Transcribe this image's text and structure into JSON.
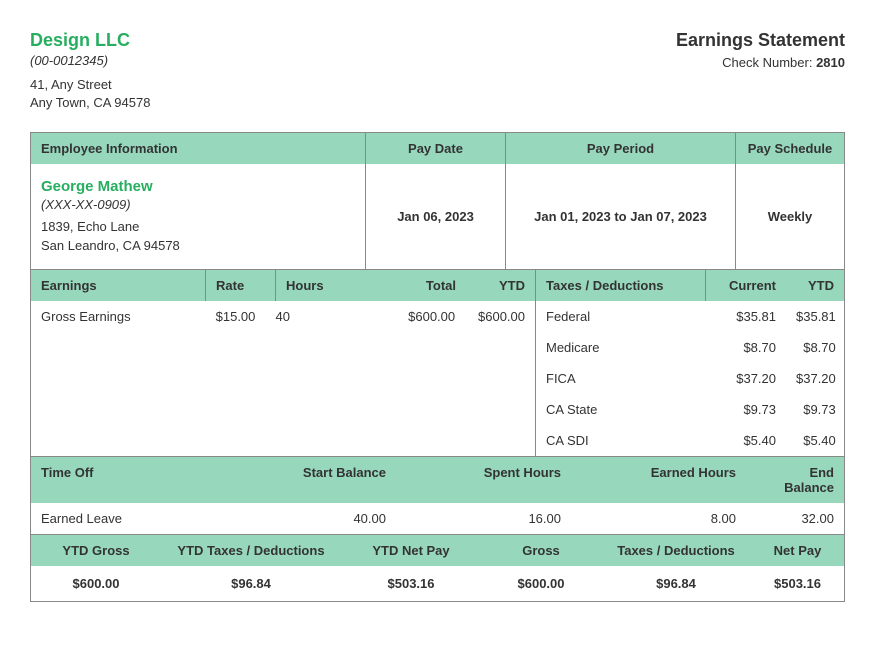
{
  "colors": {
    "accent": "#27ae60",
    "header_bg": "#97d8bd",
    "border": "#888888",
    "text": "#333333"
  },
  "company": {
    "name": "Design LLC",
    "id": "(00-0012345)",
    "addr1": "41, Any Street",
    "addr2": "Any Town, CA 94578"
  },
  "statement": {
    "title": "Earnings Statement",
    "check_label": "Check Number:",
    "check_number": "2810"
  },
  "info_headers": {
    "employee": "Employee Information",
    "pay_date": "Pay Date",
    "pay_period": "Pay Period",
    "pay_schedule": "Pay Schedule"
  },
  "employee": {
    "name": "George Mathew",
    "ssn": "(XXX-XX-0909)",
    "addr1": "1839, Echo Lane",
    "addr2": "San Leandro, CA 94578"
  },
  "pay_date": "Jan 06, 2023",
  "pay_period": "Jan 01, 2023 to Jan 07, 2023",
  "pay_schedule": "Weekly",
  "earn_headers": {
    "earnings": "Earnings",
    "rate": "Rate",
    "hours": "Hours",
    "total": "Total",
    "ytd": "YTD",
    "taxes": "Taxes / Deductions",
    "current": "Current",
    "tytd": "YTD"
  },
  "earnings": {
    "label": "Gross Earnings",
    "rate": "$15.00",
    "hours": "40",
    "total": "$600.00",
    "ytd": "$600.00"
  },
  "deductions": [
    {
      "label": "Federal",
      "current": "$35.81",
      "ytd": "$35.81"
    },
    {
      "label": "Medicare",
      "current": "$8.70",
      "ytd": "$8.70"
    },
    {
      "label": "FICA",
      "current": "$37.20",
      "ytd": "$37.20"
    },
    {
      "label": "CA State",
      "current": "$9.73",
      "ytd": "$9.73"
    },
    {
      "label": "CA SDI",
      "current": "$5.40",
      "ytd": "$5.40"
    }
  ],
  "timeoff_headers": {
    "label": "Time Off",
    "start": "Start Balance",
    "spent": "Spent Hours",
    "earned": "Earned Hours",
    "end": "End Balance"
  },
  "timeoff": {
    "label": "Earned Leave",
    "start": "40.00",
    "spent": "16.00",
    "earned": "8.00",
    "end": "32.00"
  },
  "summary_headers": {
    "ytd_gross": "YTD Gross",
    "ytd_tax": "YTD Taxes / Deductions",
    "ytd_net": "YTD Net Pay",
    "gross": "Gross",
    "tax": "Taxes / Deductions",
    "net": "Net Pay"
  },
  "summary": {
    "ytd_gross": "$600.00",
    "ytd_tax": "$96.84",
    "ytd_net": "$503.16",
    "gross": "$600.00",
    "tax": "$96.84",
    "net": "$503.16"
  }
}
